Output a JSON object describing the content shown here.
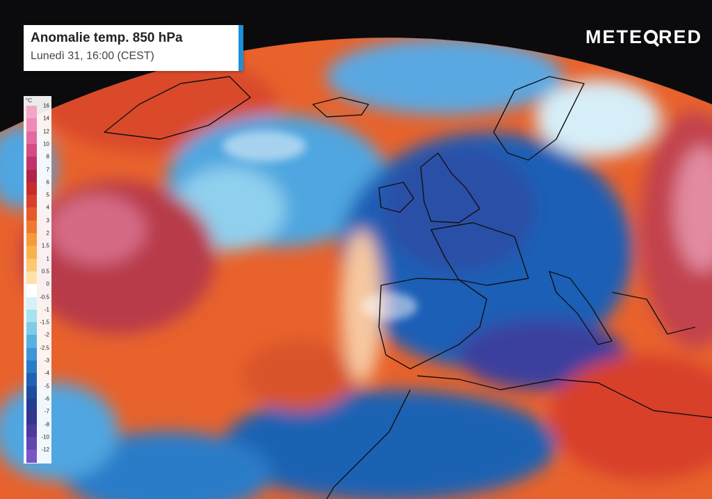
{
  "header": {
    "title": "Anomalie temp. 850 hPa",
    "subtitle": "Lunedì 31, 16:00 (CEST)"
  },
  "brand": {
    "before": "METE",
    "after": "RED"
  },
  "legend": {
    "unit": "°C",
    "labels": [
      "16",
      "14",
      "12",
      "10",
      "8",
      "7",
      "6",
      "5",
      "4",
      "3",
      "2",
      "1.5",
      "1",
      "0.5",
      "0",
      "-0.5",
      "-1",
      "-1.5",
      "-2",
      "-2.5",
      "-3",
      "-4",
      "-5",
      "-6",
      "-7",
      "-8",
      "-10",
      "-12"
    ],
    "colors": [
      "#f4a6c8",
      "#ee8ab6",
      "#e26a9e",
      "#d24d84",
      "#c0336a",
      "#b22248",
      "#c72b2b",
      "#d8402a",
      "#e55a2b",
      "#ef7a2f",
      "#f59a3a",
      "#f8b24e",
      "#fbc972",
      "#fde2a6",
      "#ffffff",
      "#d6f2f6",
      "#a7e3ef",
      "#7fcbe8",
      "#5ab1e0",
      "#3d96d6",
      "#2a7cc8",
      "#1f62b3",
      "#1c4c9e",
      "#243d8f",
      "#35358a",
      "#4a3a9a",
      "#6146b0",
      "#7b55c4"
    ]
  },
  "map": {
    "ocean_warm": "#e8622c",
    "anomaly_hot": "#b83a4a",
    "anomaly_cold": "#1f5fb6",
    "anomaly_cool": "#4fa6e0",
    "neutral": "#f4f4f4",
    "coastline": "#111111"
  }
}
